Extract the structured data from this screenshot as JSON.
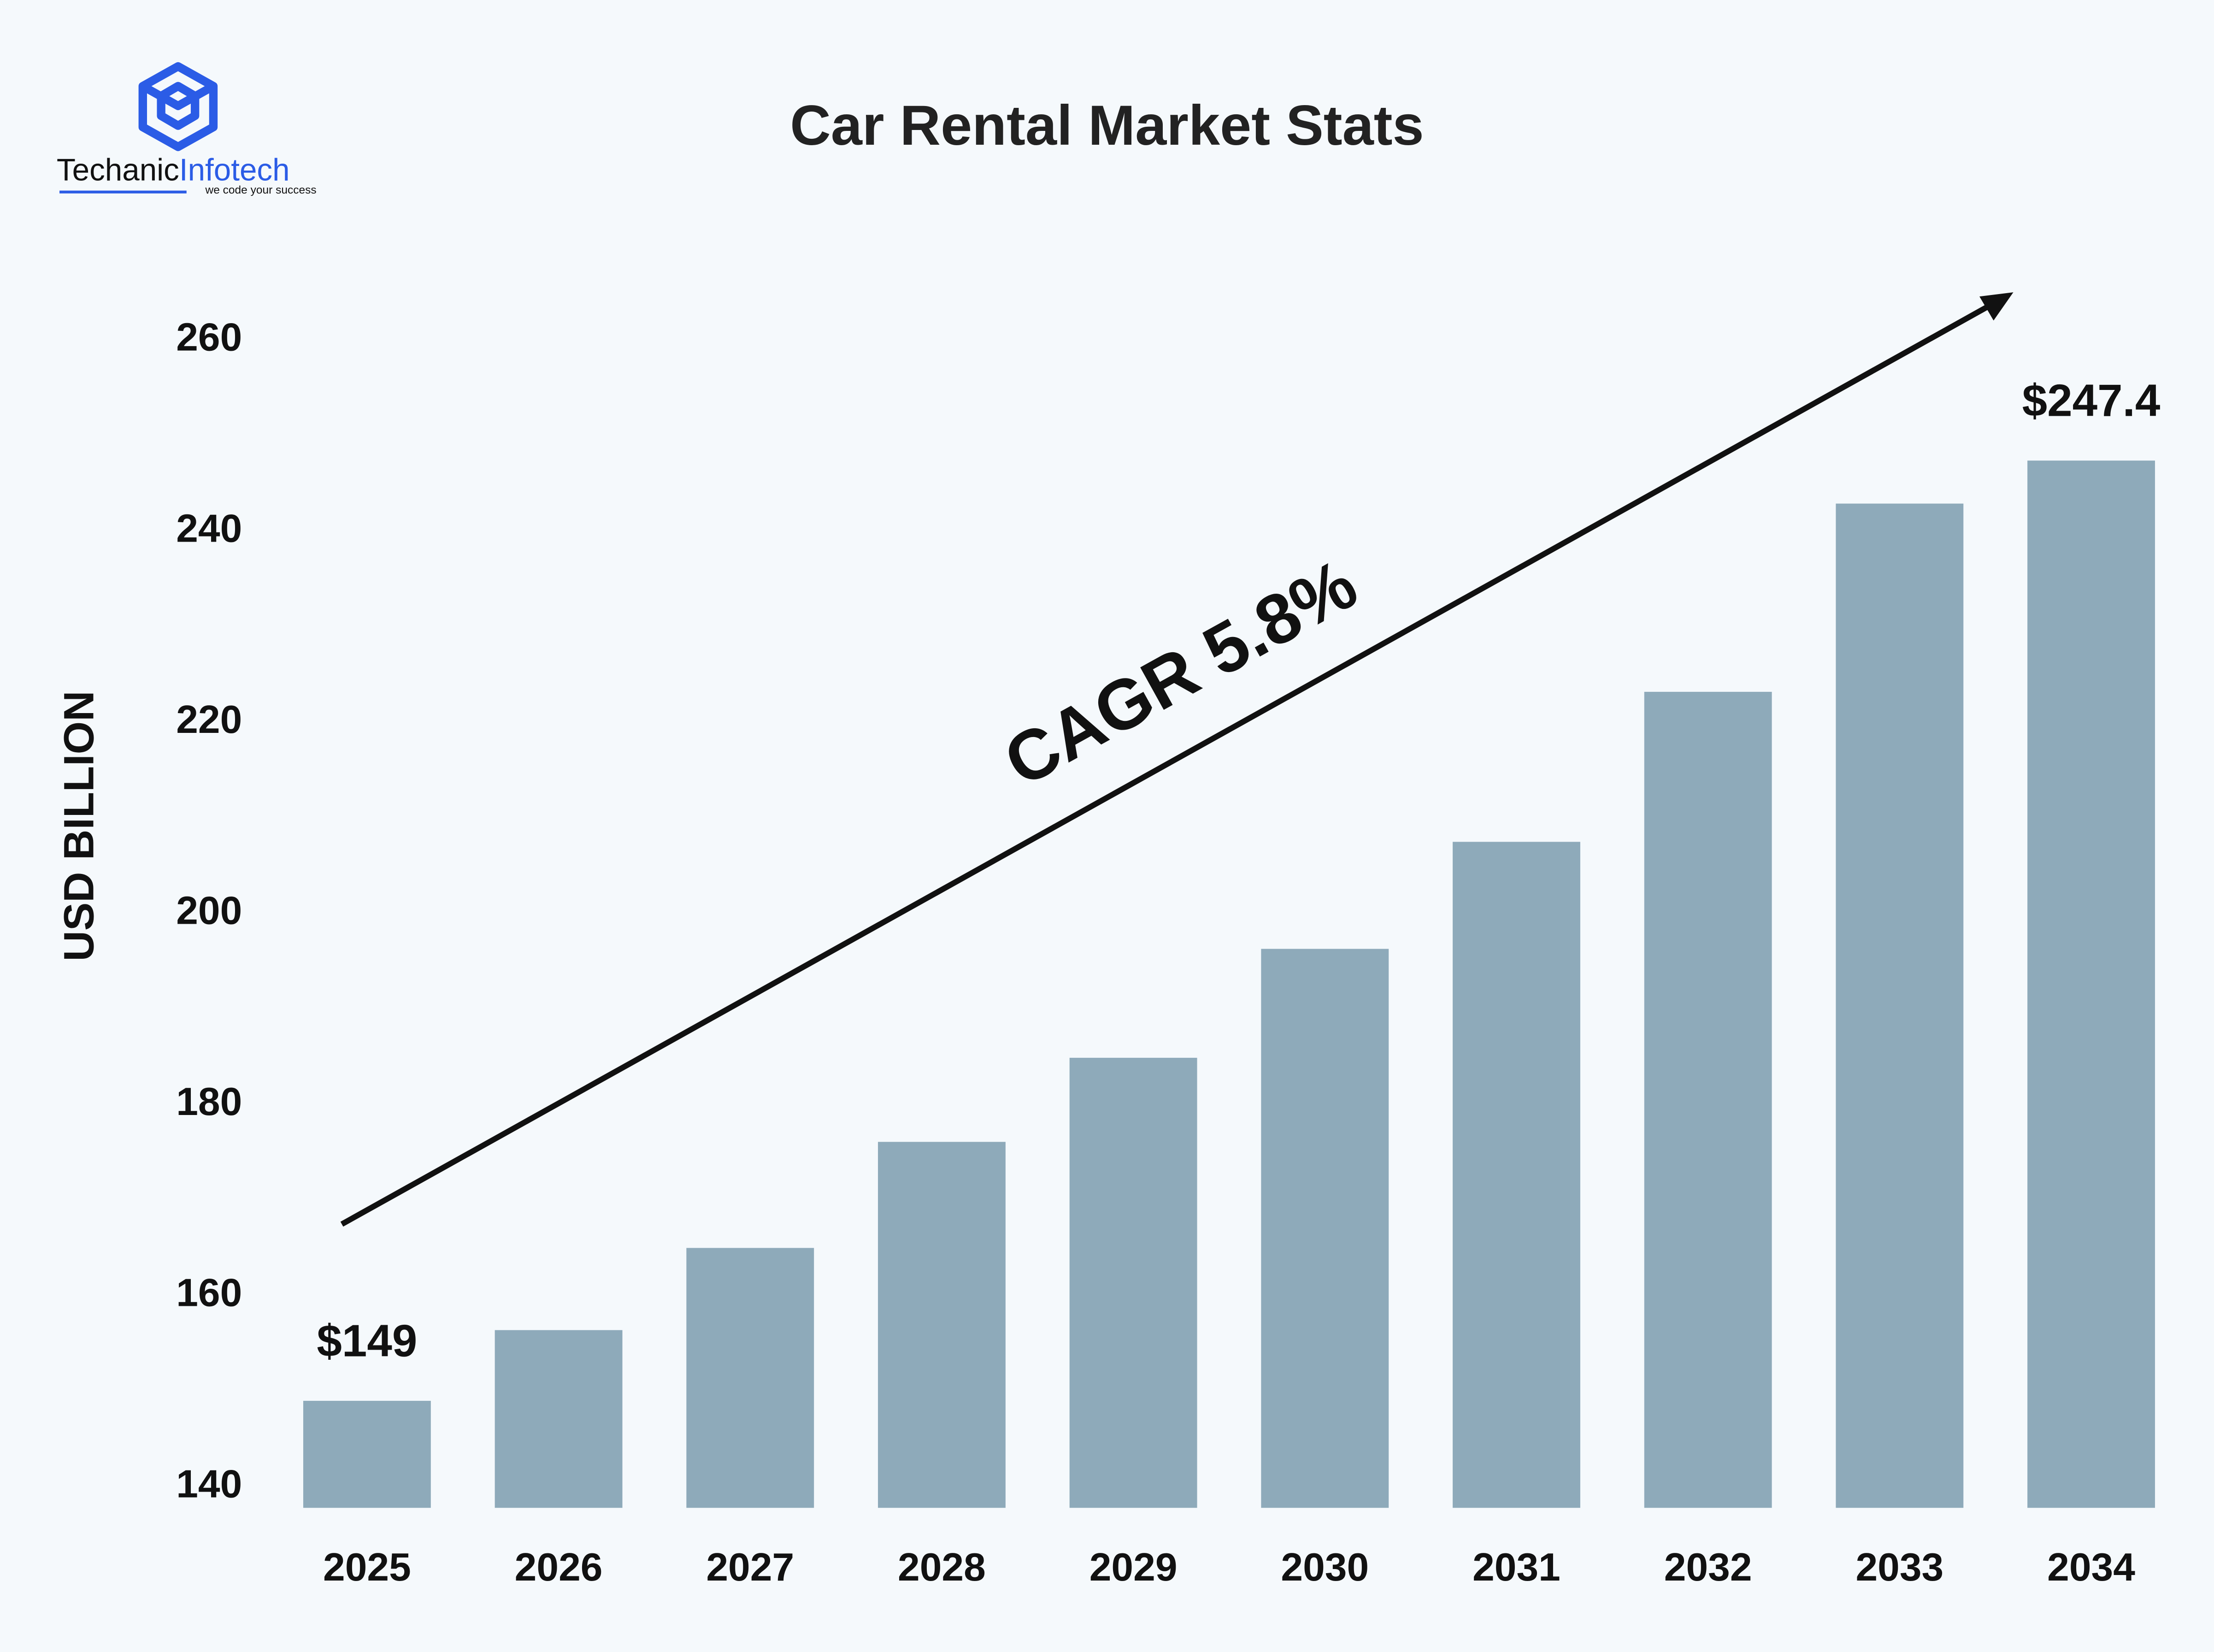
{
  "logo": {
    "name_a": "Techanic",
    "name_b": "Infotech",
    "tagline": "we code your success"
  },
  "chart_data": {
    "type": "bar",
    "title": "Car Rental Market Stats",
    "y_label": "USD BILLION",
    "categories": [
      "2025",
      "2026",
      "2027",
      "2028",
      "2029",
      "2030",
      "2031",
      "2032",
      "2033",
      "2034"
    ],
    "values": [
      149,
      156.4,
      165,
      176.1,
      184.9,
      196.3,
      207.5,
      223.2,
      242.9,
      247.4
    ],
    "value_labels": [
      "$149",
      null,
      null,
      null,
      null,
      null,
      null,
      null,
      null,
      "$247.4"
    ],
    "color": "#8eaaba",
    "ylim": [
      137.8,
      265
    ],
    "yticks": [
      140,
      160,
      180,
      200,
      220,
      240,
      260
    ],
    "grid": false,
    "annotation": "CAGR 5.8%"
  }
}
